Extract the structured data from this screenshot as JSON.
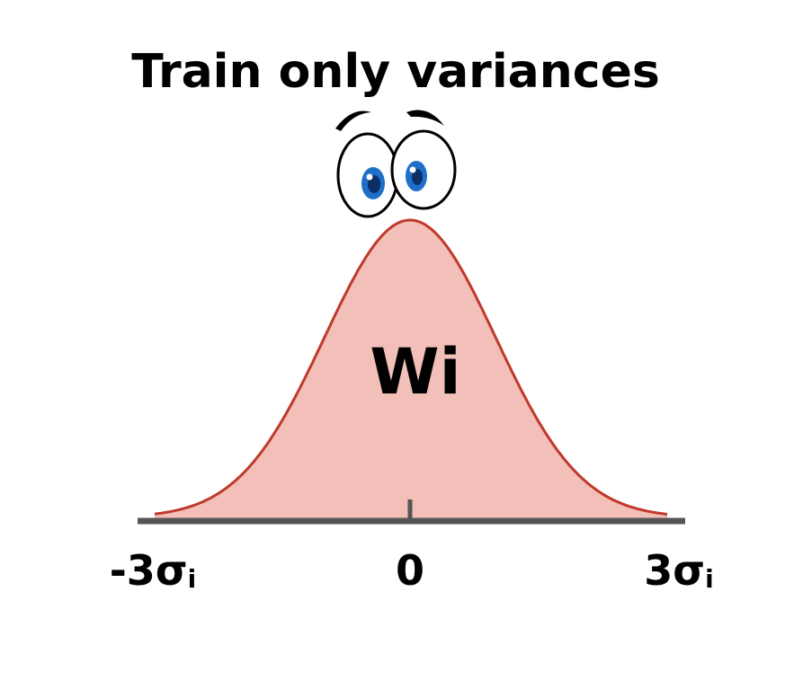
{
  "title": "Train only variances",
  "center_label": {
    "base": "W",
    "subscript": "i"
  },
  "ticks": [
    {
      "prefix": "-3",
      "symbol": "σ",
      "subscript": "i",
      "value": -3
    },
    {
      "prefix": "0",
      "symbol": "",
      "subscript": "",
      "value": 0
    },
    {
      "prefix": "3",
      "symbol": "σ",
      "subscript": "i",
      "value": 3
    }
  ],
  "colors": {
    "curve_fill": "#f2c0b8",
    "curve_stroke": "#c0392b",
    "axis": "#555555",
    "eye_iris": "#1f6fc8",
    "eye_outline": "#000000",
    "text": "#000000"
  },
  "icons": [
    "cartoon-eyes-icon",
    "eyebrow-icon"
  ]
}
